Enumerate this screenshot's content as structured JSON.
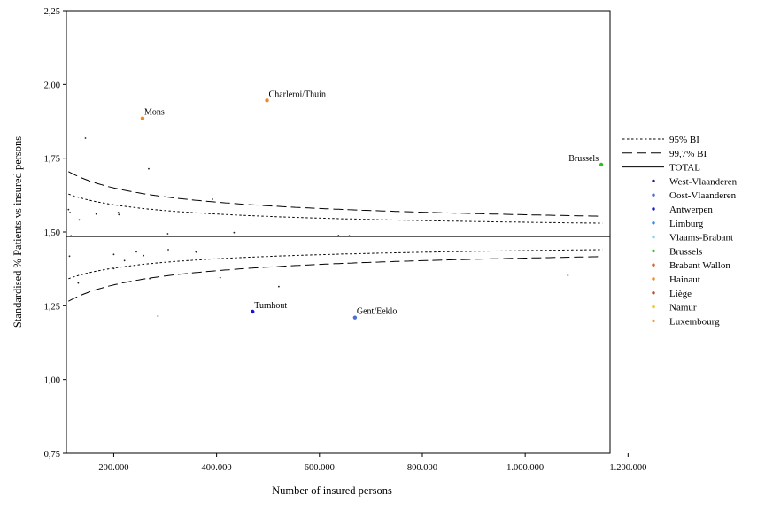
{
  "chart_data": {
    "type": "scatter",
    "title": "",
    "xlabel": "Number of insured persons",
    "ylabel": "Standardised % Patients vs insured persons",
    "xlim": [
      108000,
      1165000
    ],
    "ylim": [
      0.75,
      2.25
    ],
    "x_ticks": [
      200000,
      400000,
      600000,
      800000,
      1000000,
      1200000
    ],
    "x_tick_labels": [
      "200.000",
      "400.000",
      "600.000",
      "800.000",
      "1.000.000",
      "1.200.000"
    ],
    "y_ticks": [
      0.75,
      1.0,
      1.25,
      1.5,
      1.75,
      2.0,
      2.25
    ],
    "y_tick_labels": [
      "0,75",
      "1,00",
      "1,25",
      "1,50",
      "1,75",
      "2,00",
      "2,25"
    ],
    "total": 1.485,
    "bands": [
      {
        "name": "95% BI",
        "style": "dotted",
        "z": 1.96,
        "k": 2.45
      },
      {
        "name": "99,7% BI",
        "style": "dashed",
        "z": 3.0,
        "k": 2.45
      }
    ],
    "legend": {
      "position": "right",
      "lines": [
        {
          "name": "95% BI",
          "style": "dotted"
        },
        {
          "name": "99,7% BI",
          "style": "dashed"
        },
        {
          "name": "TOTAL",
          "style": "solid"
        }
      ],
      "regions": [
        {
          "name": "West-Vlaanderen",
          "color": "#1a237e"
        },
        {
          "name": "Oost-Vlaanderen",
          "color": "#4a6fd6"
        },
        {
          "name": "Antwerpen",
          "color": "#1515d8"
        },
        {
          "name": "Limburg",
          "color": "#2c8fe6"
        },
        {
          "name": "Vlaams-Brabant",
          "color": "#8ccff4"
        },
        {
          "name": "Brussels",
          "color": "#2fbd2f"
        },
        {
          "name": "Brabant Wallon",
          "color": "#d8602a"
        },
        {
          "name": "Hainaut",
          "color": "#f08a20"
        },
        {
          "name": "Liège",
          "color": "#b5502e"
        },
        {
          "name": "Namur",
          "color": "#f5c710"
        },
        {
          "name": "Luxembourg",
          "color": "#e89a3a"
        }
      ]
    },
    "labeled_points": [
      {
        "label": "Charleroi/Thuin",
        "x": 498000,
        "y": 1.946,
        "color": "#f08a20"
      },
      {
        "label": "Mons",
        "x": 256000,
        "y": 1.885,
        "color": "#f08a20"
      },
      {
        "label": "Brussels",
        "x": 1148000,
        "y": 1.728,
        "color": "#2fbd2f"
      },
      {
        "label": "Turnhout",
        "x": 470000,
        "y": 1.23,
        "color": "#1515d8"
      },
      {
        "label": "Gent/Eeklo",
        "x": 669000,
        "y": 1.21,
        "color": "#4a6fd6"
      }
    ],
    "points": [
      {
        "x": 145000,
        "y": 1.818
      },
      {
        "x": 268000,
        "y": 1.714
      },
      {
        "x": 112000,
        "y": 1.576
      },
      {
        "x": 115000,
        "y": 1.566
      },
      {
        "x": 133000,
        "y": 1.541
      },
      {
        "x": 166000,
        "y": 1.561
      },
      {
        "x": 209000,
        "y": 1.566
      },
      {
        "x": 210000,
        "y": 1.559
      },
      {
        "x": 392000,
        "y": 1.611
      },
      {
        "x": 305000,
        "y": 1.494
      },
      {
        "x": 434000,
        "y": 1.498
      },
      {
        "x": 637000,
        "y": 1.488
      },
      {
        "x": 658000,
        "y": 1.487
      },
      {
        "x": 117000,
        "y": 1.487
      },
      {
        "x": 114000,
        "y": 1.418
      },
      {
        "x": 200000,
        "y": 1.424
      },
      {
        "x": 244000,
        "y": 1.433
      },
      {
        "x": 258000,
        "y": 1.42
      },
      {
        "x": 306000,
        "y": 1.44
      },
      {
        "x": 360000,
        "y": 1.432
      },
      {
        "x": 221000,
        "y": 1.403
      },
      {
        "x": 200000,
        "y": 1.376
      },
      {
        "x": 131000,
        "y": 1.327
      },
      {
        "x": 407000,
        "y": 1.345
      },
      {
        "x": 521000,
        "y": 1.315
      },
      {
        "x": 1083000,
        "y": 1.353
      },
      {
        "x": 270000,
        "y": 1.342
      },
      {
        "x": 286000,
        "y": 1.215
      }
    ]
  }
}
